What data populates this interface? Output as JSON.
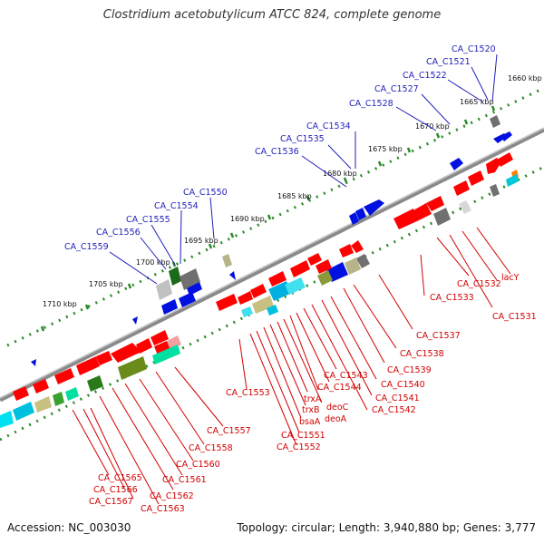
{
  "title": "Clostridium acetobutylicum ATCC 824, complete genome",
  "accession": "Accession: NC_003030",
  "summary": "Topology: circular; Length: 3,940,880 bp; Genes: 3,777",
  "colors": {
    "forward_label": "#1f1fb8",
    "reverse_label": "#d20000",
    "backbone": "#8a8a8a",
    "tick": "#2a8a2a"
  },
  "scale_labels": [
    "1660 kbp",
    "1665 kbp",
    "1670 kbp",
    "1675 kbp",
    "1680 kbp",
    "1685 kbp",
    "1690 kbp",
    "1695 kbp",
    "1700 kbp",
    "1705 kbp",
    "1710 kbp"
  ],
  "forward_gene_labels": [
    "CA_C1520",
    "CA_C1521",
    "CA_C1522",
    "CA_C1527",
    "CA_C1528",
    "CA_C1534",
    "CA_C1535",
    "CA_C1536",
    "CA_C1550",
    "CA_C1554",
    "CA_C1555",
    "CA_C1556",
    "CA_C1559"
  ],
  "reverse_gene_labels": [
    "CA_C1532",
    "CA_C1533",
    "lacY",
    "CA_C1531",
    "CA_C1537",
    "CA_C1538",
    "CA_C1539",
    "CA_C1540",
    "CA_C1541",
    "CA_C1542",
    "CA_C1543",
    "CA_C1544",
    "deoC",
    "deoA",
    "trxA",
    "trxB",
    "bsaA",
    "CA_C1551",
    "CA_C1552",
    "CA_C1553",
    "CA_C1557",
    "CA_C1558",
    "CA_C1560",
    "CA_C1561",
    "CA_C1562",
    "CA_C1563",
    "CA_C1565",
    "CA_C1566",
    "CA_C1567"
  ]
}
